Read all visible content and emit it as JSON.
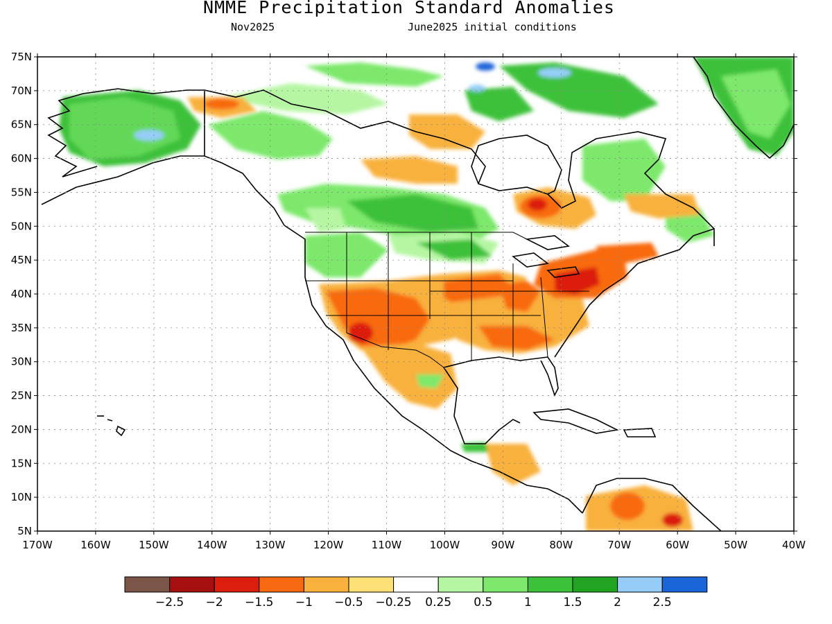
{
  "header": {
    "title": "NMME Precipitation Standard Anomalies",
    "target_month": "Nov2025",
    "initial_conditions": "June2025 initial conditions"
  },
  "map": {
    "region": "North America",
    "lon_range": [
      -170,
      -40
    ],
    "lat_range": [
      5,
      75
    ],
    "lat_ticks": [
      "75N",
      "70N",
      "65N",
      "60N",
      "55N",
      "50N",
      "45N",
      "40N",
      "35N",
      "30N",
      "25N",
      "20N",
      "15N",
      "10N",
      "5N"
    ],
    "lon_ticks": [
      "170W",
      "160W",
      "150W",
      "140W",
      "130W",
      "120W",
      "110W",
      "100W",
      "90W",
      "80W",
      "70W",
      "60W",
      "50W",
      "40W"
    ],
    "anomaly_regions": [
      {
        "name": "Alaska interior",
        "lon": -152,
        "lat": 65,
        "class": "1"
      },
      {
        "name": "Western Canada",
        "lon": -118,
        "lat": 52,
        "class": "1"
      },
      {
        "name": "Northern Plains",
        "lon": -100,
        "lat": 48,
        "class": "0.5"
      },
      {
        "name": "Hudson Bay east",
        "lon": -82,
        "lat": 52,
        "class": "-1.5"
      },
      {
        "name": "Southwest US",
        "lon": -110,
        "lat": 35,
        "class": "-1.5"
      },
      {
        "name": "Arizona",
        "lon": -113,
        "lat": 33,
        "class": "-2"
      },
      {
        "name": "Ohio Valley",
        "lon": -85,
        "lat": 39,
        "class": "-1"
      },
      {
        "name": "Northeast US",
        "lon": -78,
        "lat": 41,
        "class": "-2"
      },
      {
        "name": "Southeast US",
        "lon": -85,
        "lat": 33,
        "class": "-0.5"
      },
      {
        "name": "Greenland",
        "lon": -45,
        "lat": 68,
        "class": "1"
      },
      {
        "name": "Northern South America",
        "lon": -68,
        "lat": 7,
        "class": "-1"
      }
    ]
  },
  "legend": {
    "colors": [
      "#7b5548",
      "#a50f0f",
      "#dc1e0f",
      "#f86a11",
      "#f8b13c",
      "#fde176",
      "#ffffff",
      "#b6f6a3",
      "#7de86c",
      "#3cc13b",
      "#22a422",
      "#95cdf8",
      "#1a66d8"
    ],
    "labels": [
      "−2.5",
      "−2",
      "−1.5",
      "−1",
      "−0.5",
      "−0.25",
      "0.25",
      "0.5",
      "1",
      "1.5",
      "2",
      "2.5"
    ]
  }
}
